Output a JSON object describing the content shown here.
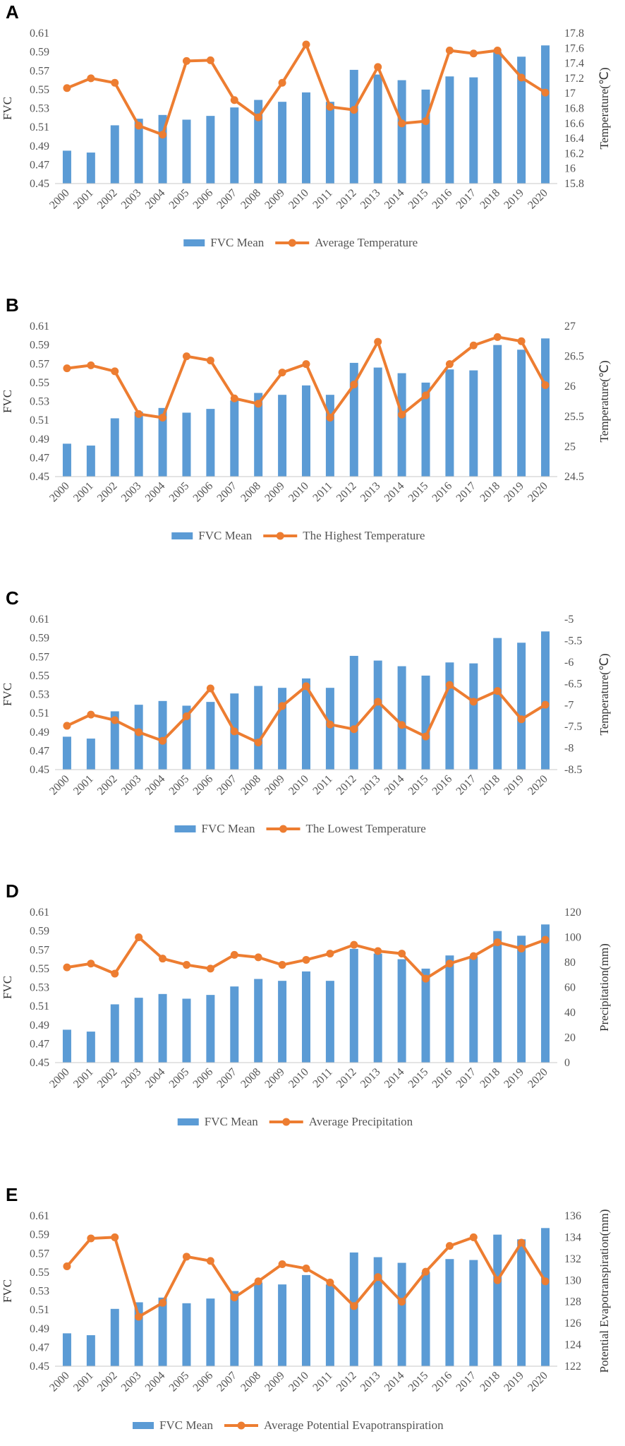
{
  "colors": {
    "bar": "#5b9bd5",
    "line": "#ed7d31",
    "axis": "#c8c8c8",
    "text": "#555555"
  },
  "chart_data": [
    {
      "panel": "A",
      "type": "bar+line",
      "categories": [
        "2000",
        "2001",
        "2002",
        "2003",
        "2004",
        "2005",
        "2006",
        "2007",
        "2008",
        "2009",
        "2010",
        "2011",
        "2012",
        "2013",
        "2014",
        "2015",
        "2016",
        "2017",
        "2018",
        "2019",
        "2020"
      ],
      "ylabel": "FVC",
      "ylim": [
        0.45,
        0.61
      ],
      "yticks": [
        "0.45",
        "0.47",
        "0.49",
        "0.51",
        "0.53",
        "0.55",
        "0.57",
        "0.59",
        "0.61"
      ],
      "y2label": "Temperature(℃)",
      "y2lim": [
        15.8,
        17.8
      ],
      "y2ticks": [
        "15.8",
        "16",
        "16.2",
        "16.4",
        "16.6",
        "16.8",
        "17",
        "17.2",
        "17.4",
        "17.6",
        "17.8"
      ],
      "series": [
        {
          "name": "FVC Mean",
          "kind": "bar",
          "axis": "left",
          "values": [
            0.485,
            0.483,
            0.512,
            0.519,
            0.523,
            0.518,
            0.522,
            0.531,
            0.539,
            0.537,
            0.547,
            0.537,
            0.571,
            0.566,
            0.56,
            0.55,
            0.564,
            0.563,
            0.59,
            0.585,
            0.597
          ]
        },
        {
          "name": "Average Temperature",
          "kind": "line",
          "axis": "right",
          "values": [
            17.07,
            17.2,
            17.14,
            16.57,
            16.45,
            17.43,
            17.44,
            16.91,
            16.68,
            17.14,
            17.65,
            16.82,
            16.78,
            17.35,
            16.6,
            16.63,
            17.57,
            17.53,
            17.57,
            17.21,
            17.01
          ]
        }
      ],
      "legend": [
        "FVC Mean",
        "Average Temperature"
      ]
    },
    {
      "panel": "B",
      "type": "bar+line",
      "categories": [
        "2000",
        "2001",
        "2002",
        "2003",
        "2004",
        "2005",
        "2006",
        "2007",
        "2008",
        "2009",
        "2010",
        "2011",
        "2012",
        "2013",
        "2014",
        "2015",
        "2016",
        "2017",
        "2018",
        "2019",
        "2020"
      ],
      "ylabel": "FVC",
      "ylim": [
        0.45,
        0.61
      ],
      "yticks": [
        "0.45",
        "0.47",
        "0.49",
        "0.51",
        "0.53",
        "0.55",
        "0.57",
        "0.59",
        "0.61"
      ],
      "y2label": "Temperature(℃)",
      "y2lim": [
        24.5,
        27
      ],
      "y2ticks": [
        "24.5",
        "25",
        "25.5",
        "26",
        "26.5",
        "27"
      ],
      "series": [
        {
          "name": "FVC Mean",
          "kind": "bar",
          "axis": "left",
          "values": [
            0.485,
            0.483,
            0.512,
            0.519,
            0.523,
            0.518,
            0.522,
            0.531,
            0.539,
            0.537,
            0.547,
            0.537,
            0.571,
            0.566,
            0.56,
            0.55,
            0.564,
            0.563,
            0.59,
            0.585,
            0.597
          ]
        },
        {
          "name": "The Highest Temperature",
          "kind": "line",
          "axis": "right",
          "values": [
            26.3,
            26.35,
            26.25,
            25.54,
            25.48,
            26.5,
            26.43,
            25.8,
            25.71,
            26.23,
            26.37,
            25.48,
            26.03,
            26.74,
            25.53,
            25.85,
            26.37,
            26.68,
            26.82,
            26.75,
            26.02
          ]
        }
      ],
      "legend": [
        "FVC Mean",
        "The Highest Temperature"
      ]
    },
    {
      "panel": "C",
      "type": "bar+line",
      "categories": [
        "2000",
        "2001",
        "2002",
        "2003",
        "2004",
        "2005",
        "2006",
        "2007",
        "2008",
        "2009",
        "2010",
        "2011",
        "2012",
        "2013",
        "2014",
        "2015",
        "2016",
        "2017",
        "2018",
        "2019",
        "2020"
      ],
      "ylabel": "FVC",
      "ylim": [
        0.45,
        0.61
      ],
      "yticks": [
        "0.45",
        "0.47",
        "0.49",
        "0.51",
        "0.53",
        "0.55",
        "0.57",
        "0.59",
        "0.61"
      ],
      "y2label": "Temperature(℃)",
      "y2lim": [
        -8.5,
        -5
      ],
      "y2ticks": [
        "-8.5",
        "-8",
        "-7.5",
        "-7",
        "-6.5",
        "-6",
        "-5.5",
        "-5"
      ],
      "series": [
        {
          "name": "FVC Mean",
          "kind": "bar",
          "axis": "left",
          "values": [
            0.485,
            0.483,
            0.512,
            0.519,
            0.523,
            0.518,
            0.522,
            0.531,
            0.539,
            0.537,
            0.547,
            0.537,
            0.571,
            0.566,
            0.56,
            0.55,
            0.564,
            0.563,
            0.59,
            0.585,
            0.597
          ]
        },
        {
          "name": "The Lowest Temperature",
          "kind": "line",
          "axis": "right",
          "values": [
            -7.48,
            -7.22,
            -7.35,
            -7.63,
            -7.83,
            -7.26,
            -6.61,
            -7.61,
            -7.87,
            -7.02,
            -6.56,
            -7.45,
            -7.56,
            -6.92,
            -7.46,
            -7.73,
            -6.53,
            -6.92,
            -6.67,
            -7.33,
            -6.99
          ]
        }
      ],
      "legend": [
        "FVC Mean",
        "The Lowest Temperature"
      ]
    },
    {
      "panel": "D",
      "type": "bar+line",
      "categories": [
        "2000",
        "2001",
        "2002",
        "2003",
        "2004",
        "2005",
        "2006",
        "2007",
        "2008",
        "2009",
        "2010",
        "2011",
        "2012",
        "2013",
        "2014",
        "2015",
        "2016",
        "2017",
        "2018",
        "2019",
        "2020"
      ],
      "ylabel": "FVC",
      "ylim": [
        0.45,
        0.61
      ],
      "yticks": [
        "0.45",
        "0.47",
        "0.49",
        "0.51",
        "0.53",
        "0.55",
        "0.57",
        "0.59",
        "0.61"
      ],
      "y2label": "Precipitation(mm)",
      "y2lim": [
        0,
        120
      ],
      "y2ticks": [
        "0",
        "20",
        "40",
        "60",
        "80",
        "100",
        "120"
      ],
      "series": [
        {
          "name": "FVC Mean",
          "kind": "bar",
          "axis": "left",
          "values": [
            0.485,
            0.483,
            0.512,
            0.519,
            0.523,
            0.518,
            0.522,
            0.531,
            0.539,
            0.537,
            0.547,
            0.537,
            0.571,
            0.566,
            0.56,
            0.55,
            0.564,
            0.563,
            0.59,
            0.585,
            0.597
          ]
        },
        {
          "name": "Average Precipitation",
          "kind": "line",
          "axis": "right",
          "values": [
            76,
            79,
            71,
            100,
            83,
            78,
            75,
            86,
            84,
            78,
            82,
            87,
            94,
            89,
            87,
            67,
            79,
            85,
            96,
            91,
            98
          ]
        }
      ],
      "legend": [
        "FVC Mean",
        "Average Precipitation"
      ]
    },
    {
      "panel": "E",
      "type": "bar+line",
      "categories": [
        "2000",
        "2001",
        "2002",
        "2003",
        "2004",
        "2005",
        "2006",
        "2007",
        "2008",
        "2009",
        "2010",
        "2011",
        "2012",
        "2013",
        "2014",
        "2015",
        "2016",
        "2017",
        "2018",
        "2019",
        "2020"
      ],
      "ylabel": "FVC",
      "ylim": [
        0.45,
        0.61
      ],
      "yticks": [
        "0.45",
        "0.47",
        "0.49",
        "0.51",
        "0.53",
        "0.55",
        "0.57",
        "0.59",
        "0.61"
      ],
      "y2label": "Potential Evapotranspiration(mm)",
      "y2lim": [
        122,
        136
      ],
      "y2ticks": [
        "122",
        "124",
        "126",
        "128",
        "130",
        "132",
        "134",
        "136"
      ],
      "series": [
        {
          "name": "FVC Mean",
          "kind": "bar",
          "axis": "left",
          "values": [
            0.485,
            0.483,
            0.511,
            0.518,
            0.523,
            0.517,
            0.522,
            0.53,
            0.539,
            0.537,
            0.547,
            0.537,
            0.571,
            0.566,
            0.56,
            0.55,
            0.564,
            0.563,
            0.59,
            0.585,
            0.597
          ]
        },
        {
          "name": "Average Potential Evapotranspiration",
          "kind": "line",
          "axis": "right",
          "values": [
            131.3,
            133.9,
            134.0,
            126.6,
            127.9,
            132.2,
            131.8,
            128.4,
            129.9,
            131.5,
            131.1,
            129.8,
            127.6,
            130.3,
            128.0,
            130.8,
            133.2,
            134.0,
            130.0,
            133.5,
            129.9
          ]
        }
      ],
      "legend": [
        "FVC Mean",
        "Average Potential Evapotranspiration"
      ]
    }
  ]
}
